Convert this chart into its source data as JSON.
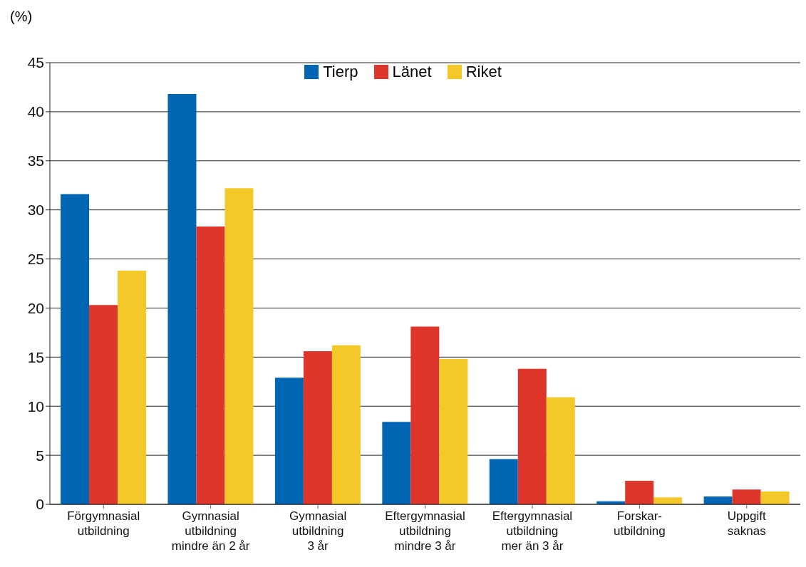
{
  "chart_data": {
    "type": "bar",
    "ylabel": "(%)",
    "categories": [
      "Förgymnasial\nutbildning",
      "Gymnasial\nutbildning\nmindre än 2 år",
      "Gymnasial\nutbildning\n3 år",
      "Eftergymnasial\nutbildning\nmindre 3 år",
      "Eftergymnasial\nutbildning\nmer än 3 år",
      "Forskar-\nutbildning",
      "Uppgift\nsaknas"
    ],
    "series": [
      {
        "name": "Tierp",
        "color": "#0066b3",
        "values": [
          31.6,
          41.8,
          12.9,
          8.4,
          4.6,
          0.3,
          0.8
        ]
      },
      {
        "name": "Länet",
        "color": "#e0352b",
        "values": [
          20.3,
          28.3,
          15.6,
          18.1,
          13.8,
          2.4,
          1.5
        ]
      },
      {
        "name": "Riket",
        "color": "#f5c829",
        "values": [
          23.8,
          32.2,
          16.2,
          14.8,
          10.9,
          0.7,
          1.3
        ]
      }
    ],
    "ylim": [
      0,
      45
    ],
    "yticks": [
      0,
      5,
      10,
      15,
      20,
      25,
      30,
      35,
      40,
      45
    ],
    "grid": "y",
    "legend": "top"
  }
}
